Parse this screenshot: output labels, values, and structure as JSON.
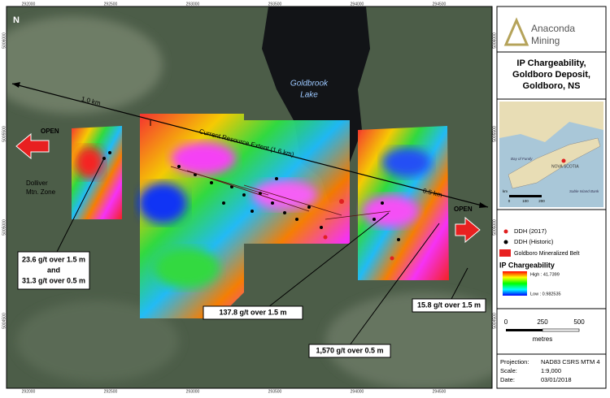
{
  "map": {
    "grid_top": [
      "292000",
      "292500",
      "293000",
      "293500",
      "294000",
      "294500"
    ],
    "grid_left": [
      "5006000",
      "5005500",
      "5005000",
      "5004500"
    ],
    "lake": [
      "Goldbrook",
      "Lake"
    ],
    "dist_1": "1.0 km",
    "resource": "Current Resource Extent (1.6 km)",
    "dist_2": "0.5 km",
    "open_left": "OPEN",
    "open_right": "OPEN",
    "zone": [
      "Dolliver",
      "Mtn. Zone"
    ],
    "callouts": [
      [
        "23.6 g/t over 1.5 m",
        "and",
        "31.3 g/t over 0.5 m"
      ],
      [
        "137.8 g/t over 1.5 m"
      ],
      [
        "1,570 g/t over 0.5 m"
      ],
      [
        "15.8 g/t over 1.5 m"
      ]
    ]
  },
  "panel": {
    "logo": [
      "Anaconda",
      "Mining"
    ],
    "title": [
      "IP Chargeability,",
      "Goldboro Deposit,",
      "Goldboro, NS"
    ],
    "inset": {
      "region": "NOVA SCOTIA",
      "bay": "Bay of Fundy",
      "island": "Sable Island Bank",
      "unit": "km",
      "scale": [
        "0",
        "100",
        "200"
      ]
    },
    "legend": {
      "ddh_2017": "DDH (2017)",
      "ddh_hist": "DDH (Historic)",
      "belt": "Goldboro Mineralized Belt",
      "ip": "IP Chargeability",
      "high": "High : 41.7399",
      "low": "Low : 0.982535"
    },
    "scale": {
      "ticks": [
        "0",
        "250",
        "500"
      ],
      "unit": "metres"
    },
    "info": [
      [
        "Projection:",
        "NAD83 CSRS MTM 4"
      ],
      [
        "Scale:",
        "1:9,000"
      ],
      [
        "Date:",
        "03/01/2018"
      ]
    ]
  }
}
